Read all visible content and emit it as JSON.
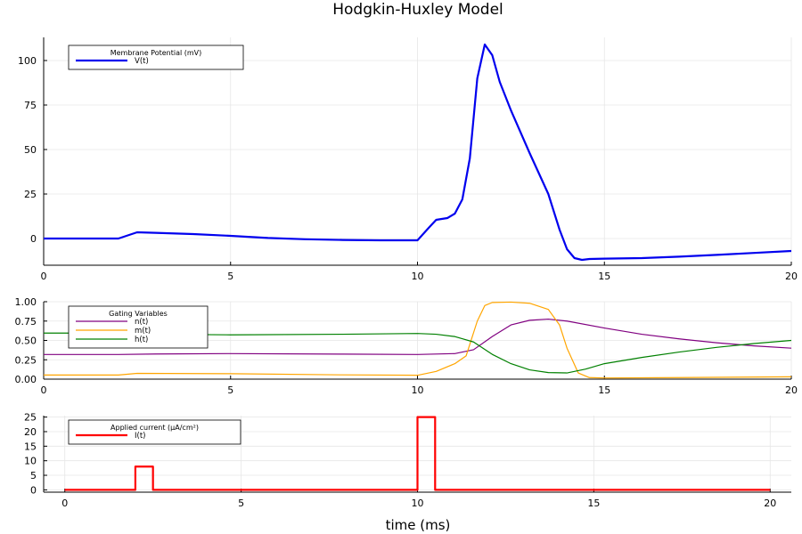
{
  "title": "Hodgkin-Huxley Model",
  "chart_data": [
    {
      "type": "line",
      "name": "voltage",
      "xlim": [
        0,
        20
      ],
      "ylim": [
        -15,
        113
      ],
      "xticks": [
        0,
        5,
        10,
        15,
        20
      ],
      "yticks": [
        0,
        25,
        50,
        75,
        100
      ],
      "grid": true,
      "legend": {
        "title": "Membrane Potential (mV)",
        "placement": "top-left"
      },
      "series": [
        {
          "name": "V(t)",
          "color": "#0000ee",
          "x": [
            0,
            2,
            2.5,
            3,
            4,
            5,
            6,
            7,
            8,
            9,
            10,
            10.3,
            10.5,
            10.8,
            11,
            11.2,
            11.4,
            11.6,
            11.8,
            12,
            12.2,
            12.5,
            13,
            13.5,
            13.8,
            14,
            14.2,
            14.4,
            14.6,
            15,
            16,
            17,
            18,
            19,
            20
          ],
          "y": [
            0,
            0,
            3.5,
            3.2,
            2.5,
            1.5,
            0.3,
            -0.4,
            -0.8,
            -1,
            -1,
            6,
            10.5,
            11.5,
            14,
            22,
            45,
            90,
            109,
            103,
            88,
            72,
            48,
            25,
            5,
            -6,
            -11,
            -12,
            -11.5,
            -11.3,
            -11,
            -10.2,
            -9.2,
            -8.1,
            -7
          ]
        }
      ]
    },
    {
      "type": "line",
      "name": "gating",
      "xlim": [
        0,
        20
      ],
      "ylim": [
        0,
        1
      ],
      "xticks": [
        0,
        5,
        10,
        15,
        20
      ],
      "yticks": [
        0,
        0.25,
        0.5,
        0.75,
        1
      ],
      "ytick_labels": [
        "0.00",
        "0.25",
        "0.50",
        "0.75",
        "1.00"
      ],
      "grid": true,
      "legend": {
        "title": "Gating Variables",
        "placement": "top-left"
      },
      "series": [
        {
          "name": "n(t)",
          "color": "#800080",
          "x": [
            0,
            2,
            3,
            5,
            8,
            10,
            11,
            11.5,
            12,
            12.5,
            13,
            13.5,
            14,
            15,
            16,
            17,
            18,
            19,
            20
          ],
          "y": [
            0.318,
            0.318,
            0.325,
            0.33,
            0.323,
            0.318,
            0.33,
            0.38,
            0.55,
            0.7,
            0.76,
            0.775,
            0.75,
            0.66,
            0.58,
            0.52,
            0.47,
            0.43,
            0.4
          ]
        },
        {
          "name": "m(t)",
          "color": "#ffa500",
          "x": [
            0,
            2,
            2.5,
            5,
            8,
            10,
            10.5,
            11,
            11.3,
            11.6,
            11.8,
            12,
            12.5,
            13,
            13.5,
            13.8,
            14,
            14.3,
            14.6,
            15,
            17,
            20
          ],
          "y": [
            0.053,
            0.053,
            0.075,
            0.07,
            0.055,
            0.05,
            0.1,
            0.2,
            0.3,
            0.75,
            0.95,
            0.99,
            0.995,
            0.98,
            0.9,
            0.7,
            0.4,
            0.08,
            0.02,
            0.015,
            0.02,
            0.03
          ]
        },
        {
          "name": "h(t)",
          "color": "#008000",
          "x": [
            0,
            2,
            3,
            5,
            8,
            10,
            10.5,
            11,
            11.5,
            12,
            12.5,
            13,
            13.5,
            14,
            14.5,
            15,
            16,
            17,
            18,
            19,
            20
          ],
          "y": [
            0.595,
            0.595,
            0.58,
            0.572,
            0.58,
            0.59,
            0.58,
            0.55,
            0.48,
            0.32,
            0.2,
            0.12,
            0.085,
            0.08,
            0.13,
            0.2,
            0.28,
            0.35,
            0.41,
            0.46,
            0.5
          ]
        }
      ]
    },
    {
      "type": "line",
      "name": "current",
      "xlim": [
        -0.6,
        20.6
      ],
      "ylim": [
        -0.8,
        25.5
      ],
      "xticks": [
        0,
        5,
        10,
        15,
        20
      ],
      "yticks": [
        0,
        5,
        10,
        15,
        20,
        25
      ],
      "xlabel": "time (ms)",
      "grid": true,
      "legend": {
        "title": "Applied current (μA/cm²)",
        "placement": "top-left"
      },
      "series": [
        {
          "name": "I(t)",
          "color": "#ff0000",
          "x": [
            0,
            2,
            2,
            2.5,
            2.5,
            10,
            10,
            10.5,
            10.5,
            20
          ],
          "y": [
            0,
            0,
            8,
            8,
            0,
            0,
            25,
            25,
            0,
            0
          ]
        }
      ]
    }
  ]
}
